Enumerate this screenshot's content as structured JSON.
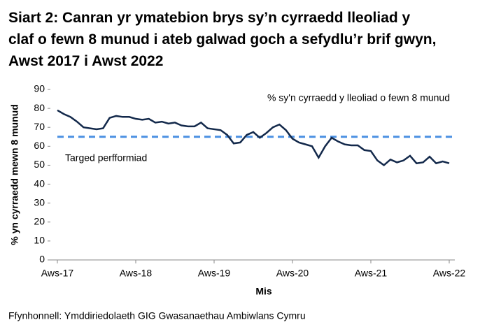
{
  "chart_data": {
    "type": "line",
    "title": "Siart 2: Canran yr ymatebion brys sy’n cyrraedd lleoliad y claf o fewn 8 munud i ateb galwad goch a sefydlu’r brif gwyn, Awst 2017 i Awst 2022",
    "categories": [
      "Aws-17",
      null,
      null,
      null,
      null,
      null,
      null,
      null,
      null,
      null,
      null,
      null,
      "Aws-18",
      null,
      null,
      null,
      null,
      null,
      null,
      null,
      null,
      null,
      null,
      null,
      "Aws-19",
      null,
      null,
      null,
      null,
      null,
      null,
      null,
      null,
      null,
      null,
      null,
      "Aws-20",
      null,
      null,
      null,
      null,
      null,
      null,
      null,
      null,
      null,
      null,
      null,
      "Aws-21",
      null,
      null,
      null,
      null,
      null,
      null,
      null,
      null,
      null,
      null,
      null,
      "Aws-22"
    ],
    "series": [
      {
        "name": "% sy'n cyrraedd y lleoliad o fewn 8 munud",
        "color": "#13294b",
        "values": [
          79,
          77,
          75.5,
          73,
          70,
          69.5,
          69,
          69.5,
          75,
          76,
          75.5,
          75.5,
          74.5,
          74,
          74.5,
          72.5,
          73,
          72,
          72.5,
          71,
          70.5,
          70.5,
          72.5,
          69.5,
          69,
          68.5,
          66,
          61.5,
          62,
          66,
          67.5,
          64.5,
          67,
          70,
          71.5,
          68.5,
          64,
          62,
          61,
          60,
          54,
          60,
          64.5,
          62.5,
          61,
          60.5,
          60.5,
          58,
          57.5,
          52.5,
          50,
          53,
          51.5,
          52.5,
          55,
          51,
          51.5,
          54.5,
          51,
          52,
          51
        ]
      }
    ],
    "target": {
      "value": 65,
      "label": "Targed perfformiad",
      "color": "#4a90e2"
    },
    "ylim": [
      0,
      90
    ],
    "yticks": [
      0,
      10,
      20,
      30,
      40,
      50,
      60,
      70,
      80,
      90
    ],
    "x_label": "Mis",
    "y_label": "% yn cyrraedd mewn 8 munud",
    "source": "Ffynhonnell: Ymddiriedolaeth GIG Gwasanaethau Ambiwlans Cymru"
  }
}
